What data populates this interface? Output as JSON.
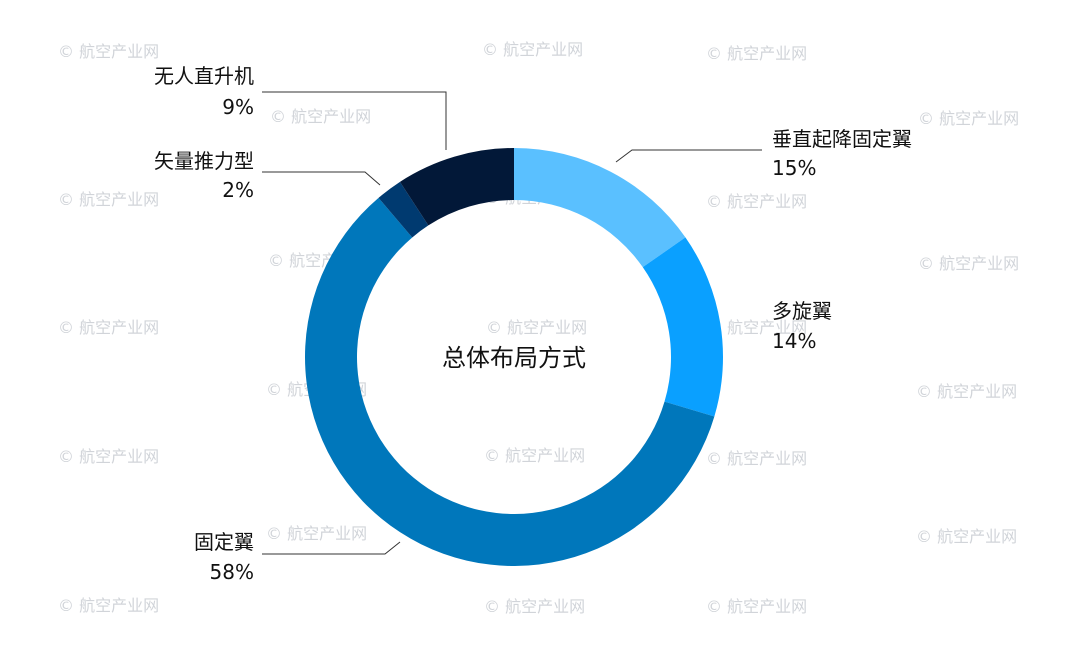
{
  "chart_data": {
    "type": "pie",
    "variant": "donut",
    "center_label": "总体布局方式",
    "slices": [
      {
        "name": "垂直起降固定翼",
        "value": 15,
        "value_label": "15%",
        "color": "#5ac0ff"
      },
      {
        "name": "多旋翼",
        "value": 14,
        "value_label": "14%",
        "color": "#0aa0ff"
      },
      {
        "name": "固定翼",
        "value": 58,
        "value_label": "58%",
        "color": "#0077bb"
      },
      {
        "name": "矢量推力型",
        "value": 2,
        "value_label": "2%",
        "color": "#003a70"
      },
      {
        "name": "无人直升机",
        "value": 9,
        "value_label": "9%",
        "color": "#021838"
      }
    ]
  },
  "watermark": {
    "text": "© 航空产业网"
  }
}
